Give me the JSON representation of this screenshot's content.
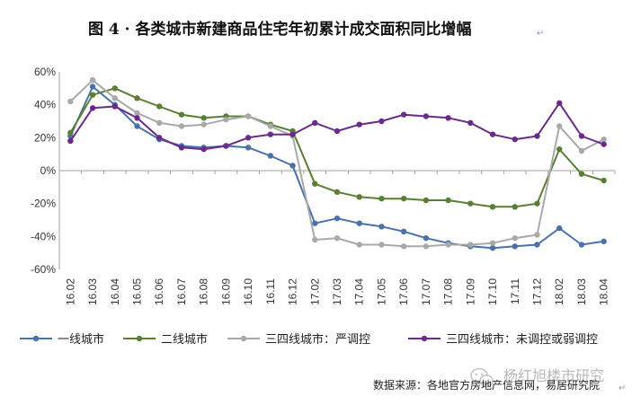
{
  "chart_data": {
    "type": "line",
    "title": "图 4 ·  各类城市新建商品住宅年初累计成交面积同比增幅",
    "xlabel": "",
    "ylabel": "",
    "ylim": [
      -60,
      60
    ],
    "yticks": [
      60,
      40,
      20,
      0,
      -20,
      -40,
      -60
    ],
    "ytick_labels": [
      "60%",
      "40%",
      "20%",
      "0%",
      "-20%",
      "-40%",
      "-60%"
    ],
    "categories": [
      "16.02",
      "16.03",
      "16.04",
      "16.05",
      "16.06",
      "16.07",
      "16.08",
      "16.09",
      "16.10",
      "16.11",
      "16.12",
      "17.02",
      "17.03",
      "17.04",
      "17.05",
      "17.06",
      "17.07",
      "17.08",
      "17.09",
      "17.10",
      "17.11",
      "17.12",
      "18.02",
      "18.03",
      "18.04"
    ],
    "series": [
      {
        "name": "一线城市",
        "color": "#4a72aa",
        "values": [
          21,
          51,
          40,
          27,
          19,
          15,
          14,
          15,
          14,
          9,
          3,
          -32,
          -29,
          -32,
          -34,
          -37,
          -41,
          -44,
          -46,
          -47,
          -46,
          -45,
          -35,
          -45,
          -43
        ]
      },
      {
        "name": "二线城市",
        "color": "#5a7f34",
        "values": [
          23,
          46,
          50,
          44,
          39,
          34,
          32,
          33,
          33,
          28,
          24,
          -8,
          -13,
          -16,
          -17,
          -17,
          -18,
          -18,
          -20,
          -22,
          -22,
          -20,
          13,
          -2,
          -6
        ]
      },
      {
        "name": "三四线城市：严调控",
        "color": "#a9a9a9",
        "values": [
          42,
          55,
          44,
          35,
          29,
          27,
          28,
          31,
          33,
          27,
          21,
          -42,
          -41,
          -45,
          -45,
          -46,
          -46,
          -45,
          -45,
          -44,
          -41,
          -39,
          27,
          12,
          19
        ]
      },
      {
        "name": "三四线城市：未调控或弱调控",
        "color": "#6b2a8a",
        "values": [
          18,
          38,
          39,
          32,
          20,
          14,
          13,
          15,
          20,
          22,
          22,
          29,
          24,
          28,
          30,
          34,
          33,
          32,
          29,
          22,
          19,
          21,
          41,
          21,
          16
        ]
      }
    ],
    "legend_position": "bottom",
    "grid": false,
    "source": "数据来源：各地官方房地产信息网，易居研究院",
    "watermark": "杨红旭楼市研究"
  }
}
